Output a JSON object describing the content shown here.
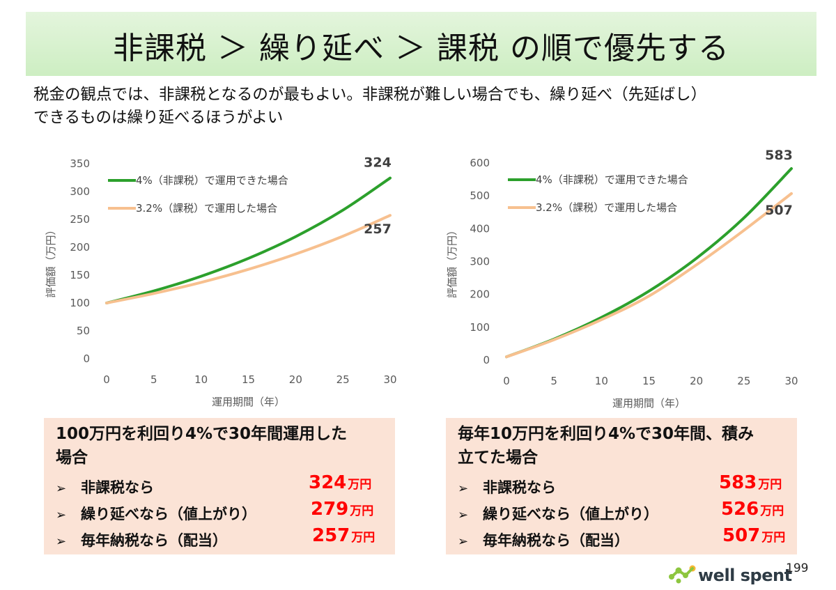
{
  "header": {
    "title": "非課税 ＞ 繰り延べ ＞ 課税 の順で優先する",
    "subtitle_lines": [
      "税金の観点では、非課税となるのが最もよい。非課税が難しい場合でも、繰り延べ（先延ばし）",
      "できるものは繰り延べるほうがよい"
    ]
  },
  "chart_data": [
    {
      "type": "line",
      "xlabel": "運用期間（年）",
      "ylabel": "評価額（万円）",
      "xlim": [
        0,
        30
      ],
      "ylim": [
        0,
        350
      ],
      "xticks": [
        "0",
        "5",
        "10",
        "15",
        "20",
        "25",
        "30"
      ],
      "yticks": [
        "0",
        "50",
        "100",
        "150",
        "200",
        "250",
        "300",
        "350"
      ],
      "grid": false,
      "legend_position": "top-left",
      "x": [
        0,
        5,
        10,
        15,
        20,
        25,
        30
      ],
      "series": [
        {
          "name": "4%（非課税）で運用できた場合",
          "color": "#2ca02c",
          "values": [
            100,
            121.7,
            148.0,
            180.1,
            219.1,
            266.6,
            324.3
          ],
          "end_label": "324"
        },
        {
          "name": "3.2%（課税）で運用した場合",
          "color": "#f7c08f",
          "values": [
            100,
            117.1,
            137.0,
            160.4,
            187.8,
            219.8,
            257.3
          ],
          "end_label": "257"
        }
      ]
    },
    {
      "type": "line",
      "xlabel": "運用期間（年）",
      "ylabel": "評価額（万円）",
      "xlim": [
        0,
        30
      ],
      "ylim": [
        0,
        600
      ],
      "xticks": [
        "0",
        "5",
        "10",
        "15",
        "20",
        "25",
        "30"
      ],
      "yticks": [
        "0",
        "100",
        "200",
        "300",
        "400",
        "500",
        "600"
      ],
      "grid": false,
      "legend_position": "top-left",
      "x": [
        0,
        5,
        10,
        15,
        20,
        25,
        30
      ],
      "series": [
        {
          "name": "4%（非課税）で運用できた場合",
          "color": "#2ca02c",
          "values": [
            10,
            64,
            130,
            210,
            310,
            433,
            583
          ],
          "end_label": "583"
        },
        {
          "name": "3.2%（課税）で運用した場合",
          "color": "#f7c08f",
          "values": [
            10,
            62,
            123,
            195,
            290,
            395,
            507
          ],
          "end_label": "507"
        }
      ]
    }
  ],
  "boxes": [
    {
      "title_lines": [
        "100万円を利回り4%で30年間運用した",
        "場合"
      ],
      "bullet": "➢",
      "items": [
        {
          "label": "非課税なら",
          "value": "324",
          "unit": "万円"
        },
        {
          "label": "繰り延べなら（値上がり）",
          "value": "279",
          "unit": "万円"
        },
        {
          "label": "毎年納税なら（配当）",
          "value": "257",
          "unit": "万円"
        }
      ]
    },
    {
      "title_lines": [
        "毎年10万円を利回り4%で30年間、積み",
        "立てた場合"
      ],
      "bullet": "➢",
      "items": [
        {
          "label": "非課税なら",
          "value": "583",
          "unit": "万円"
        },
        {
          "label": "繰り延べなら（値上がり）",
          "value": "526",
          "unit": "万円"
        },
        {
          "label": "毎年納税なら（配当）",
          "value": "507",
          "unit": "万円"
        }
      ]
    }
  ],
  "footer": {
    "logo_text": "well spent",
    "logo_colors": [
      "#8dc63f",
      "#f7b733"
    ],
    "page_number": "199"
  }
}
